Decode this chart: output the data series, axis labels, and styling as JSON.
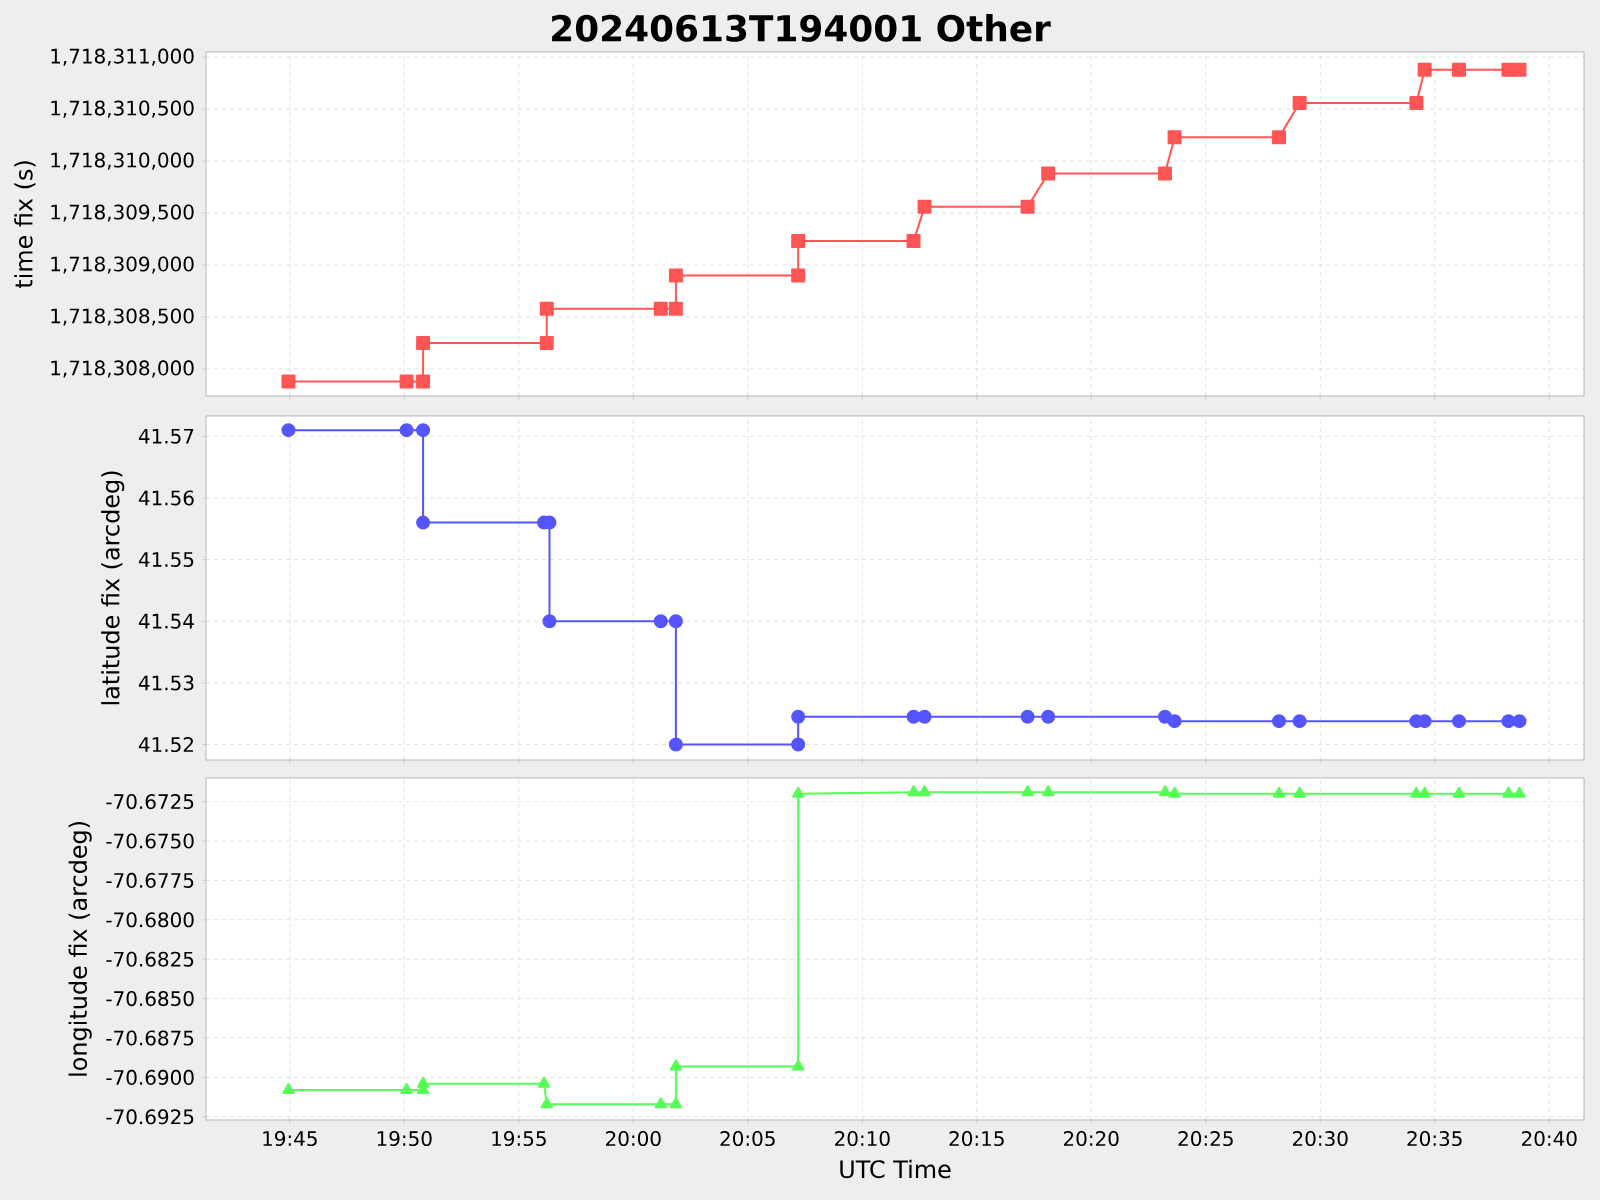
{
  "chart_data": [
    {
      "type": "line",
      "title": "20240613T194001 Other",
      "ylabel": "time fix (s)",
      "color": "#ff5555",
      "marker": "square",
      "line_style": "solid",
      "grid": true,
      "tick_labels": "y",
      "x": [
        19.749,
        19.835,
        19.847,
        19.847,
        19.937,
        19.937,
        20.02,
        20.031,
        20.031,
        20.12,
        20.12,
        20.204,
        20.212,
        20.287,
        20.302,
        20.387,
        20.394,
        20.47,
        20.485,
        20.57,
        20.576,
        20.601,
        20.637,
        20.645
      ],
      "values": [
        1718307880,
        1718307880,
        1718307880,
        1718308250,
        1718308250,
        1718308580,
        1718308580,
        1718308580,
        1718308900,
        1718308900,
        1718309230,
        1718309230,
        1718309560,
        1718309560,
        1718309880,
        1718309880,
        1718310230,
        1718310230,
        1718310560,
        1718310560,
        1718310880,
        1718310880,
        1718310880,
        1718310880
      ],
      "xlim": [
        19.689,
        20.692
      ],
      "ylim": [
        1718307740,
        1718311050
      ],
      "xticks": [
        {
          "value": 19.75,
          "label": null
        },
        {
          "value": 19.8333,
          "label": null
        },
        {
          "value": 19.9167,
          "label": null
        },
        {
          "value": 20.0,
          "label": null
        },
        {
          "value": 20.0833,
          "label": null
        },
        {
          "value": 20.1667,
          "label": null
        },
        {
          "value": 20.25,
          "label": null
        },
        {
          "value": 20.3333,
          "label": null
        },
        {
          "value": 20.4167,
          "label": null
        },
        {
          "value": 20.5,
          "label": null
        },
        {
          "value": 20.5833,
          "label": null
        },
        {
          "value": 20.6667,
          "label": null
        }
      ],
      "yticks": [
        {
          "value": 1718308000,
          "label": "1,718,308,000"
        },
        {
          "value": 1718308500,
          "label": "1,718,308,500"
        },
        {
          "value": 1718309000,
          "label": "1,718,309,000"
        },
        {
          "value": 1718309500,
          "label": "1,718,309,500"
        },
        {
          "value": 1718310000,
          "label": "1,718,310,000"
        },
        {
          "value": 1718310500,
          "label": "1,718,310,500"
        },
        {
          "value": 1718311000,
          "label": "1,718,311,000"
        }
      ]
    },
    {
      "type": "line",
      "ylabel": "latitude fix (arcdeg)",
      "color": "#5555ff",
      "marker": "circle",
      "line_style": "solid",
      "grid": true,
      "tick_labels": "y",
      "x": [
        19.749,
        19.835,
        19.847,
        19.847,
        19.935,
        19.939,
        19.939,
        20.02,
        20.031,
        20.031,
        20.12,
        20.12,
        20.204,
        20.212,
        20.287,
        20.302,
        20.387,
        20.394,
        20.47,
        20.485,
        20.57,
        20.576,
        20.601,
        20.637,
        20.645
      ],
      "values": [
        41.571,
        41.571,
        41.571,
        41.556,
        41.556,
        41.556,
        41.54,
        41.54,
        41.54,
        41.52,
        41.52,
        41.5245,
        41.5245,
        41.5245,
        41.5245,
        41.5245,
        41.5245,
        41.5238,
        41.5238,
        41.5238,
        41.5238,
        41.5238,
        41.5238,
        41.5238,
        41.5238
      ],
      "xlim": [
        19.689,
        20.692
      ],
      "ylim": [
        41.5175,
        41.5733
      ],
      "xticks": [
        {
          "value": 19.75,
          "label": null
        },
        {
          "value": 19.8333,
          "label": null
        },
        {
          "value": 19.9167,
          "label": null
        },
        {
          "value": 20.0,
          "label": null
        },
        {
          "value": 20.0833,
          "label": null
        },
        {
          "value": 20.1667,
          "label": null
        },
        {
          "value": 20.25,
          "label": null
        },
        {
          "value": 20.3333,
          "label": null
        },
        {
          "value": 20.4167,
          "label": null
        },
        {
          "value": 20.5,
          "label": null
        },
        {
          "value": 20.5833,
          "label": null
        },
        {
          "value": 20.6667,
          "label": null
        }
      ],
      "yticks": [
        41.52,
        41.53,
        41.54,
        41.55,
        41.56,
        41.57
      ]
    },
    {
      "type": "line",
      "ylabel": "longitude fix (arcdeg)",
      "xlabel": "UTC Time",
      "color": "#55ff55",
      "marker": "triangle",
      "line_style": "solid",
      "grid": true,
      "x": [
        19.749,
        19.835,
        19.847,
        19.847,
        19.935,
        19.937,
        20.02,
        20.031,
        20.031,
        20.12,
        20.12,
        20.204,
        20.212,
        20.287,
        20.302,
        20.387,
        20.394,
        20.47,
        20.485,
        20.57,
        20.576,
        20.601,
        20.637,
        20.645
      ],
      "values": [
        -70.6908,
        -70.6908,
        -70.6908,
        -70.6904,
        -70.6904,
        -70.6917,
        -70.6917,
        -70.6917,
        -70.6893,
        -70.6893,
        -70.672,
        -70.6719,
        -70.6719,
        -70.6719,
        -70.6719,
        -70.6719,
        -70.672,
        -70.672,
        -70.672,
        -70.672,
        -70.672,
        -70.672,
        -70.672,
        -70.672
      ],
      "xlim": [
        19.689,
        20.692
      ],
      "ylim": [
        -70.6927,
        -70.671
      ],
      "xticks": [
        {
          "value": 19.75,
          "label": "19:45"
        },
        {
          "value": 19.8333,
          "label": "19:50"
        },
        {
          "value": 19.9167,
          "label": "19:55"
        },
        {
          "value": 20.0,
          "label": "20:00"
        },
        {
          "value": 20.0833,
          "label": "20:05"
        },
        {
          "value": 20.1667,
          "label": "20:10"
        },
        {
          "value": 20.25,
          "label": "20:15"
        },
        {
          "value": 20.3333,
          "label": "20:20"
        },
        {
          "value": 20.4167,
          "label": "20:25"
        },
        {
          "value": 20.5,
          "label": "20:30"
        },
        {
          "value": 20.5833,
          "label": "20:35"
        },
        {
          "value": 20.6667,
          "label": "20:40"
        }
      ],
      "yticks": [
        {
          "value": -70.6925,
          "label": "-70.6925"
        },
        {
          "value": -70.69,
          "label": "-70.6900"
        },
        {
          "value": -70.6875,
          "label": "-70.6875"
        },
        {
          "value": -70.685,
          "label": "-70.6850"
        },
        {
          "value": -70.6825,
          "label": "-70.6825"
        },
        {
          "value": -70.68,
          "label": "-70.6800"
        },
        {
          "value": -70.6775,
          "label": "-70.6775"
        },
        {
          "value": -70.675,
          "label": "-70.6750"
        },
        {
          "value": -70.6725,
          "label": "-70.6725"
        }
      ]
    }
  ]
}
